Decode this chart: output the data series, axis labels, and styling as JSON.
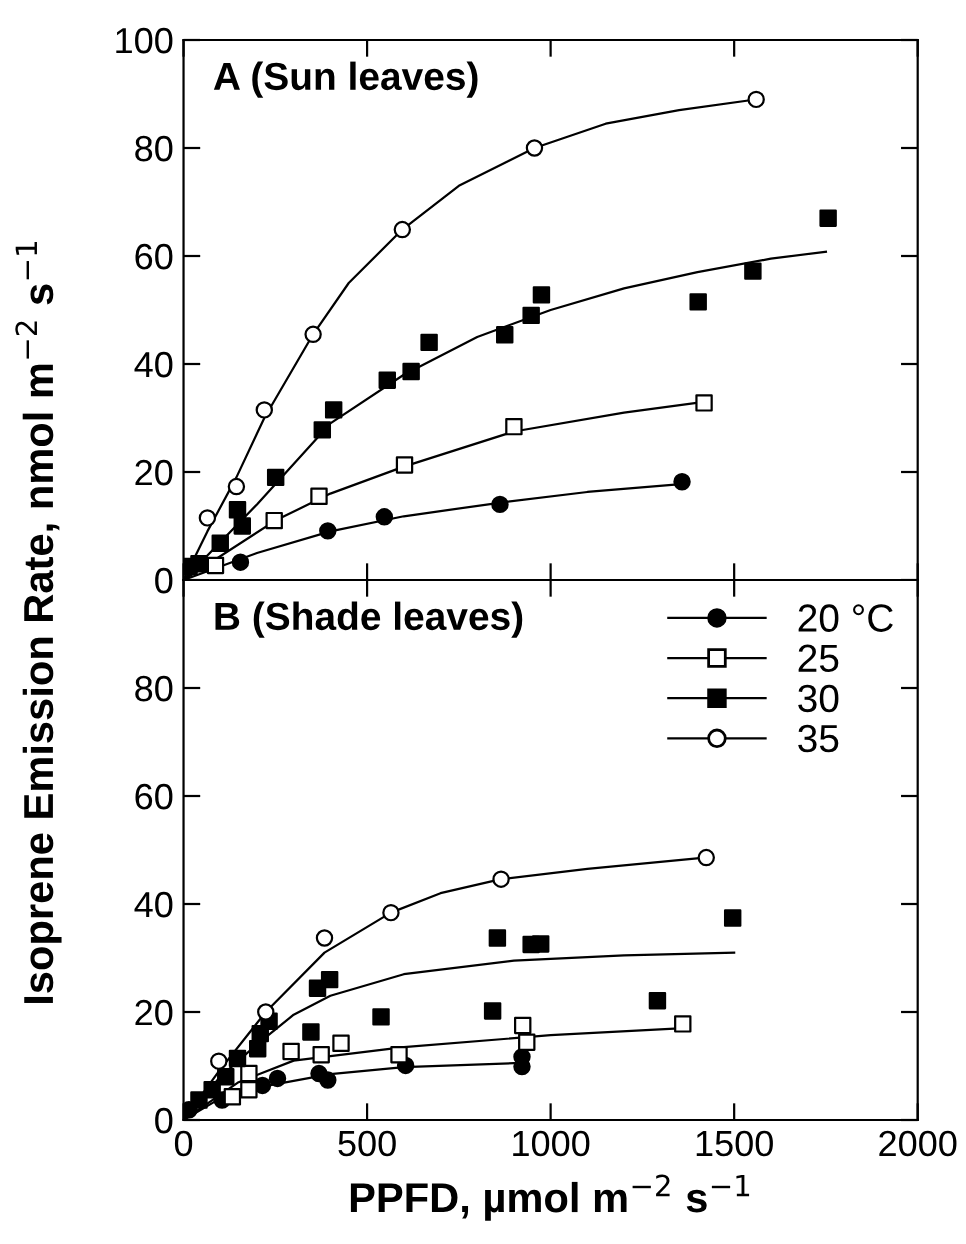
{
  "chart_data": [
    {
      "type": "scatter",
      "title": "A (Sun leaves)",
      "ylabel": "Isoprene Emission Rate, nmol m$^{−2}$ s$^{−1}$",
      "xlim": [
        0,
        2000
      ],
      "xticks": [
        0,
        500,
        1000,
        1500,
        2000
      ],
      "ylim": [
        0,
        100
      ],
      "yticks": [
        0,
        20,
        40,
        60,
        80,
        100
      ],
      "tick_labels": "y",
      "grid": false,
      "legend": false,
      "series": [
        {
          "color": "#000000",
          "marker": "circle",
          "x": [
            155,
            393,
            547,
            862,
            1358
          ],
          "values": [
            3.3,
            9.1,
            11.7,
            14,
            18.2
          ]
        },
        {
          "color": "#ffffff",
          "marker": "square",
          "x": [
            87,
            247,
            369,
            602,
            900,
            1418
          ],
          "values": [
            2.7,
            11,
            15.5,
            21.3,
            28.4,
            32.8
          ]
        },
        {
          "color": "#000000",
          "marker": "square",
          "x": [
            15,
            42,
            100,
            147,
            160,
            251,
            378,
            409,
            555,
            620,
            669,
            875,
            947,
            975,
            1402,
            1551,
            1756
          ],
          "values": [
            2.5,
            3,
            6.8,
            13,
            10,
            19,
            27.8,
            31.5,
            37,
            38.6,
            44,
            45.4,
            49,
            52.8,
            51.5,
            57.2,
            67
          ]
        },
        {
          "color": "#ffffff",
          "marker": "circle",
          "x": [
            65,
            144,
            220,
            353,
            596,
            956,
            1560
          ],
          "values": [
            11.5,
            17.3,
            31.5,
            45.5,
            64.9,
            80,
            89
          ]
        },
        {
          "type": "line",
          "color": "#000000",
          "marker": "none",
          "x": [
            0,
            200,
            400,
            600,
            860,
            1100,
            1360
          ],
          "values": [
            0,
            5,
            9,
            11.8,
            14.3,
            16.3,
            17.8
          ]
        },
        {
          "type": "line",
          "color": "#000000",
          "marker": "none",
          "x": [
            0,
            250,
            400,
            600,
            900,
            1200,
            1420
          ],
          "values": [
            0,
            11,
            16,
            21,
            27.5,
            31,
            33
          ]
        },
        {
          "type": "line",
          "color": "#000000",
          "marker": "none",
          "x": [
            0,
            100,
            200,
            400,
            600,
            800,
            1000,
            1200,
            1400,
            1600,
            1750
          ],
          "values": [
            0,
            7,
            14,
            29,
            38,
            45,
            50,
            54,
            57,
            59.5,
            60.8
          ]
        },
        {
          "type": "line",
          "color": "#000000",
          "marker": "none",
          "x": [
            0,
            65,
            144,
            220,
            353,
            450,
            596,
            750,
            956,
            1150,
            1350,
            1560
          ],
          "values": [
            0,
            9,
            19,
            30,
            45.5,
            55,
            64.9,
            73,
            80,
            84.5,
            87,
            89
          ]
        }
      ]
    },
    {
      "type": "scatter",
      "title": "B (Shade leaves)",
      "xlabel": "PPFD, µmol m$^{−2}$ s$^{−1}$",
      "xlim": [
        0,
        2000
      ],
      "xticks": [
        0,
        500,
        1000,
        1500,
        2000
      ],
      "ylim": [
        0,
        100
      ],
      "yticks": [
        0,
        20,
        40,
        60,
        80
      ],
      "grid": false,
      "legend": "top right",
      "series": [
        {
          "name": "20 °C",
          "color": "#000000",
          "marker": "circle",
          "x": [
            15,
            105,
            215,
            256,
            369,
            393,
            605,
            922,
            922
          ],
          "values": [
            1.9,
            3.7,
            6.4,
            7.7,
            8.6,
            7.4,
            10.1,
            11.7,
            9.9
          ]
        },
        {
          "name": "25",
          "color": "#ffffff",
          "marker": "square",
          "x": [
            133,
            178,
            178,
            293,
            375,
            429,
            587,
            924,
            935,
            1360
          ],
          "values": [
            4.3,
            8.6,
            5.6,
            12.7,
            12.1,
            14.2,
            12.1,
            17.5,
            14.4,
            17.8
          ]
        },
        {
          "name": "30",
          "color": "#000000",
          "marker": "square",
          "x": [
            42,
            78,
            115,
            147,
            202,
            209,
            233,
            347,
            365,
            398,
            538,
            842,
            855,
            947,
            973,
            1291,
            1496
          ],
          "values": [
            3.7,
            5.6,
            8,
            11.4,
            13.2,
            16,
            18.3,
            16.3,
            24.4,
            26,
            19.1,
            20.2,
            33.7,
            32.5,
            32.6,
            22.1,
            37.4
          ]
        },
        {
          "name": "35",
          "color": "#ffffff",
          "marker": "circle",
          "x": [
            96,
            224,
            384,
            565,
            865,
            1424
          ],
          "values": [
            10.9,
            20,
            33.7,
            38.4,
            44.6,
            48.6
          ]
        },
        {
          "type": "line",
          "color": "#000000",
          "marker": "none",
          "x": [
            0,
            100,
            200,
            400,
            600,
            930
          ],
          "values": [
            0,
            4,
            6,
            8.5,
            9.8,
            10.6
          ]
        },
        {
          "type": "line",
          "color": "#000000",
          "marker": "none",
          "x": [
            0,
            150,
            300,
            600,
            1000,
            1360
          ],
          "values": [
            0,
            7,
            11,
            13.5,
            15.7,
            17
          ]
        },
        {
          "type": "line",
          "color": "#000000",
          "marker": "none",
          "x": [
            0,
            100,
            200,
            300,
            400,
            600,
            900,
            1200,
            1500
          ],
          "values": [
            0,
            8,
            14,
            19.5,
            23,
            27,
            29.5,
            30.5,
            31
          ]
        },
        {
          "type": "line",
          "color": "#000000",
          "marker": "none",
          "x": [
            0,
            96,
            224,
            384,
            565,
            700,
            865,
            1100,
            1424
          ],
          "values": [
            0,
            9,
            20,
            31,
            38.4,
            42,
            44.6,
            46.5,
            48.6
          ]
        }
      ]
    }
  ]
}
